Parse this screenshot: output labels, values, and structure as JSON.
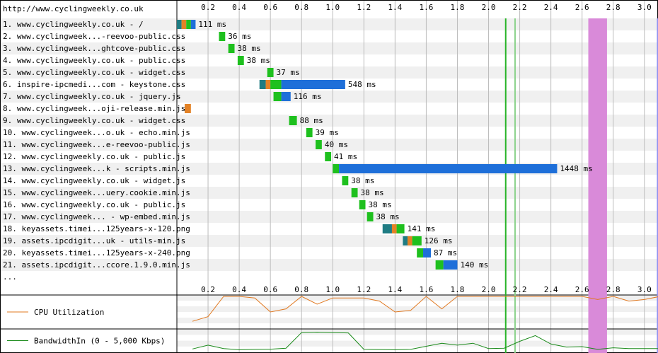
{
  "page_url": "http://www.cyclingweekly.co.uk",
  "more_label": "...",
  "colors": {
    "dns": "#1f7c83",
    "connect": "#e38226",
    "ssl": "#b452a4",
    "ttfb": "#1ec01e",
    "download": "#1e6fd9",
    "start_render": "#28b428",
    "dom_content": "#8cd28c",
    "load_event": "#b000b0",
    "document_complete": "#3030f0",
    "cpu_line": "#e07820",
    "bw_line": "#1a8a1a"
  },
  "chart_data": [
    {
      "type": "waterfall",
      "x_unit": "seconds",
      "xlim": [
        0,
        3.1
      ],
      "ticks": [
        0.2,
        0.4,
        0.6,
        0.8,
        1.0,
        1.2,
        1.4,
        1.6,
        1.8,
        2.0,
        2.2,
        2.4,
        2.6,
        2.8,
        3.0
      ],
      "tick_labels": [
        "0.2",
        "0.4",
        "0.6",
        "0.8",
        "1.0",
        "1.2",
        "1.4",
        "1.6",
        "1.8",
        "2.0",
        "2.2",
        "2.4",
        "2.6",
        "2.8",
        "3.0"
      ],
      "markers": [
        {
          "name": "start_render",
          "time": 2.11,
          "color": "#28b428"
        },
        {
          "name": "dom_content",
          "time": 2.17,
          "color": "#8cd28c"
        },
        {
          "name": "load_event",
          "start": 2.64,
          "end": 2.76,
          "color": "#d98ad9"
        },
        {
          "name": "document_complete",
          "start": 3.08,
          "end": 3.1,
          "color": "#9090f0"
        }
      ],
      "requests": [
        {
          "label": "1. www.cyclingweekly.co.uk - /",
          "duration": "111 ms",
          "phases": [
            {
              "t": "dns",
              "s": 0.0,
              "e": 0.03
            },
            {
              "t": "connect",
              "s": 0.03,
              "e": 0.06
            },
            {
              "t": "ttfb",
              "s": 0.06,
              "e": 0.09
            },
            {
              "t": "download",
              "s": 0.09,
              "e": 0.12
            }
          ]
        },
        {
          "label": "2. www.cyclingweek...-reevoo-public.css",
          "duration": "36 ms",
          "phases": [
            {
              "t": "ttfb",
              "s": 0.27,
              "e": 0.31
            }
          ]
        },
        {
          "label": "3. www.cyclingweek...ghtcove-public.css",
          "duration": "38 ms",
          "phases": [
            {
              "t": "ttfb",
              "s": 0.33,
              "e": 0.37
            }
          ]
        },
        {
          "label": "4. www.cyclingweekly.co.uk - public.css",
          "duration": "38 ms",
          "phases": [
            {
              "t": "ttfb",
              "s": 0.39,
              "e": 0.43
            }
          ]
        },
        {
          "label": "5. www.cyclingweekly.co.uk - widget.css",
          "duration": "37 ms",
          "phases": [
            {
              "t": "ttfb",
              "s": 0.58,
              "e": 0.62
            }
          ]
        },
        {
          "label": "6. inspire-ipcmedi...com - keystone.css",
          "duration": "548 ms",
          "phases": [
            {
              "t": "dns",
              "s": 0.53,
              "e": 0.57
            },
            {
              "t": "connect",
              "s": 0.57,
              "e": 0.6
            },
            {
              "t": "ttfb",
              "s": 0.6,
              "e": 0.67
            },
            {
              "t": "download",
              "s": 0.67,
              "e": 1.08
            }
          ]
        },
        {
          "label": "7. www.cyclingweekly.co.uk - jquery.js",
          "duration": "116 ms",
          "phases": [
            {
              "t": "ttfb",
              "s": 0.62,
              "e": 0.67
            },
            {
              "t": "download",
              "s": 0.67,
              "e": 0.73
            }
          ]
        },
        {
          "label": "8. www.cyclingweek...oji-release.min.js",
          "duration": "",
          "phases": [
            {
              "t": "connect",
              "s": 0.05,
              "e": 0.09
            }
          ]
        },
        {
          "label": "9. www.cyclingweekly.co.uk - widget.css",
          "duration": "88 ms",
          "phases": [
            {
              "t": "ttfb",
              "s": 0.72,
              "e": 0.77
            }
          ]
        },
        {
          "label": "10. www.cyclingweek...o.uk - echo.min.js",
          "duration": "39 ms",
          "phases": [
            {
              "t": "ttfb",
              "s": 0.83,
              "e": 0.87
            }
          ]
        },
        {
          "label": "11. www.cyclingweek...e-reevoo-public.js",
          "duration": "40 ms",
          "phases": [
            {
              "t": "ttfb",
              "s": 0.89,
              "e": 0.93
            }
          ]
        },
        {
          "label": "12. www.cyclingweekly.co.uk - public.js",
          "duration": "41 ms",
          "phases": [
            {
              "t": "ttfb",
              "s": 0.95,
              "e": 0.99
            }
          ]
        },
        {
          "label": "13. www.cyclingweek...k - scripts.min.js",
          "duration": "1448 ms",
          "phases": [
            {
              "t": "ttfb",
              "s": 1.0,
              "e": 1.04
            },
            {
              "t": "download",
              "s": 1.04,
              "e": 2.44
            }
          ]
        },
        {
          "label": "14. www.cyclingweekly.co.uk - widget.js",
          "duration": "38 ms",
          "phases": [
            {
              "t": "ttfb",
              "s": 1.06,
              "e": 1.1
            }
          ]
        },
        {
          "label": "15. www.cyclingweek...uery.cookie.min.js",
          "duration": "38 ms",
          "phases": [
            {
              "t": "ttfb",
              "s": 1.12,
              "e": 1.16
            }
          ]
        },
        {
          "label": "16. www.cyclingweekly.co.uk - public.js",
          "duration": "38 ms",
          "phases": [
            {
              "t": "ttfb",
              "s": 1.17,
              "e": 1.21
            }
          ]
        },
        {
          "label": "17. www.cyclingweek... - wp-embed.min.js",
          "duration": "38 ms",
          "phases": [
            {
              "t": "ttfb",
              "s": 1.22,
              "e": 1.26
            }
          ]
        },
        {
          "label": "18. keyassets.timei...125years-x-120.png",
          "duration": "141 ms",
          "phases": [
            {
              "t": "dns",
              "s": 1.32,
              "e": 1.38
            },
            {
              "t": "connect",
              "s": 1.38,
              "e": 1.41
            },
            {
              "t": "ttfb",
              "s": 1.41,
              "e": 1.46
            }
          ]
        },
        {
          "label": "19. assets.ipcdigit...uk - utils-min.js",
          "duration": "126 ms",
          "phases": [
            {
              "t": "dns",
              "s": 1.45,
              "e": 1.48
            },
            {
              "t": "connect",
              "s": 1.48,
              "e": 1.51
            },
            {
              "t": "ttfb",
              "s": 1.51,
              "e": 1.57
            }
          ]
        },
        {
          "label": "20. keyassets.timei...125years-x-240.png",
          "duration": "87 ms",
          "phases": [
            {
              "t": "ttfb",
              "s": 1.54,
              "e": 1.58
            },
            {
              "t": "download",
              "s": 1.58,
              "e": 1.63
            }
          ]
        },
        {
          "label": "21. assets.ipcdigit...ccore.1.9.0.min.js",
          "duration": "140 ms",
          "phases": [
            {
              "t": "ttfb",
              "s": 1.66,
              "e": 1.71
            },
            {
              "t": "download",
              "s": 1.71,
              "e": 1.8
            }
          ]
        }
      ]
    },
    {
      "type": "line",
      "title": "CPU Utilization",
      "xlim": [
        0,
        3.1
      ],
      "ylim": [
        0,
        100
      ],
      "x": [
        0.1,
        0.2,
        0.3,
        0.4,
        0.5,
        0.6,
        0.7,
        0.8,
        0.9,
        1.0,
        1.1,
        1.2,
        1.3,
        1.4,
        1.5,
        1.6,
        1.7,
        1.8,
        1.9,
        2.0,
        2.1,
        2.2,
        2.3,
        2.4,
        2.5,
        2.6,
        2.7,
        2.8,
        2.9,
        3.0,
        3.1
      ],
      "values": [
        20,
        35,
        100,
        100,
        95,
        50,
        60,
        100,
        75,
        95,
        95,
        95,
        85,
        50,
        55,
        100,
        60,
        100,
        100,
        100,
        100,
        100,
        100,
        100,
        100,
        100,
        90,
        100,
        85,
        90,
        100
      ]
    },
    {
      "type": "line",
      "title": "BandwidthIn (0 - 5,000 Kbps)",
      "xlim": [
        0,
        3.1
      ],
      "ylim": [
        0,
        5000
      ],
      "x": [
        0.1,
        0.2,
        0.3,
        0.4,
        0.5,
        0.6,
        0.7,
        0.8,
        0.9,
        1.0,
        1.1,
        1.2,
        1.3,
        1.4,
        1.5,
        1.6,
        1.7,
        1.8,
        1.9,
        2.0,
        2.1,
        2.2,
        2.3,
        2.4,
        2.5,
        2.6,
        2.7,
        2.8,
        2.9,
        3.0,
        3.1
      ],
      "values": [
        500,
        1500,
        600,
        300,
        400,
        450,
        700,
        4800,
        4900,
        4800,
        4700,
        400,
        350,
        300,
        400,
        1200,
        2000,
        1500,
        2000,
        600,
        700,
        2500,
        4000,
        1800,
        1000,
        1100,
        400,
        800,
        600,
        600,
        600
      ]
    }
  ]
}
